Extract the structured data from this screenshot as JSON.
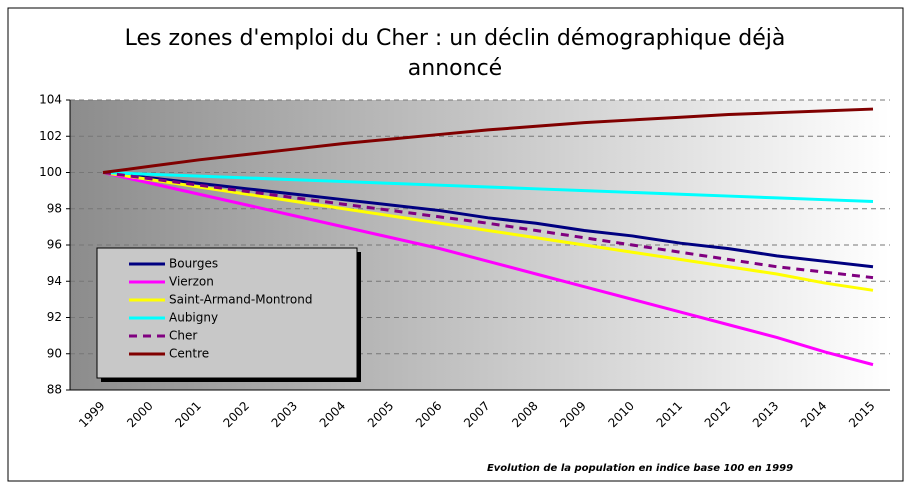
{
  "chart_data": {
    "type": "line",
    "title": "Les zones d'emploi du Cher : un déclin démographique déjà annoncé",
    "note": "Evolution de la population en indice base 100 en 1999",
    "categories": [
      "1999",
      "2000",
      "2001",
      "2002",
      "2003",
      "2004",
      "2005",
      "2006",
      "2007",
      "2008",
      "2009",
      "2010",
      "2011",
      "2012",
      "2013",
      "2014",
      "2015"
    ],
    "ylim": [
      88,
      104
    ],
    "yticks": [
      88,
      90,
      92,
      94,
      96,
      98,
      100,
      102,
      104
    ],
    "grid": true,
    "legend": "lower-left",
    "series": [
      {
        "name": "Bourges",
        "color": "#000080",
        "style": "solid",
        "values": [
          100,
          99.7,
          99.4,
          99.1,
          98.8,
          98.5,
          98.2,
          97.9,
          97.5,
          97.2,
          96.8,
          96.5,
          96.1,
          95.8,
          95.4,
          95.1,
          94.8
        ]
      },
      {
        "name": "Vierzon",
        "color": "#ff00ff",
        "style": "solid",
        "values": [
          100,
          99.4,
          98.8,
          98.2,
          97.6,
          97.0,
          96.4,
          95.8,
          95.1,
          94.4,
          93.7,
          93.0,
          92.3,
          91.6,
          90.9,
          90.1,
          89.4
        ]
      },
      {
        "name": "Saint-Armand-Montrond",
        "color": "#ffff00",
        "style": "solid",
        "values": [
          100,
          99.6,
          99.2,
          98.8,
          98.4,
          98.0,
          97.6,
          97.2,
          96.8,
          96.4,
          96.0,
          95.6,
          95.2,
          94.8,
          94.4,
          93.9,
          93.5
        ]
      },
      {
        "name": "Aubigny",
        "color": "#00ffff",
        "style": "solid",
        "values": [
          100,
          99.9,
          99.8,
          99.7,
          99.6,
          99.5,
          99.4,
          99.3,
          99.2,
          99.1,
          99.0,
          98.9,
          98.8,
          98.7,
          98.6,
          98.5,
          98.4
        ]
      },
      {
        "name": "Cher",
        "color": "#800080",
        "style": "dashed",
        "values": [
          100,
          99.65,
          99.3,
          98.95,
          98.6,
          98.25,
          97.9,
          97.55,
          97.2,
          96.8,
          96.4,
          96.0,
          95.6,
          95.2,
          94.8,
          94.5,
          94.2
        ]
      },
      {
        "name": "Centre",
        "color": "#800000",
        "style": "solid",
        "values": [
          100,
          100.35,
          100.7,
          101.0,
          101.3,
          101.6,
          101.85,
          102.1,
          102.35,
          102.55,
          102.75,
          102.9,
          103.05,
          103.2,
          103.3,
          103.4,
          103.5
        ]
      }
    ]
  }
}
